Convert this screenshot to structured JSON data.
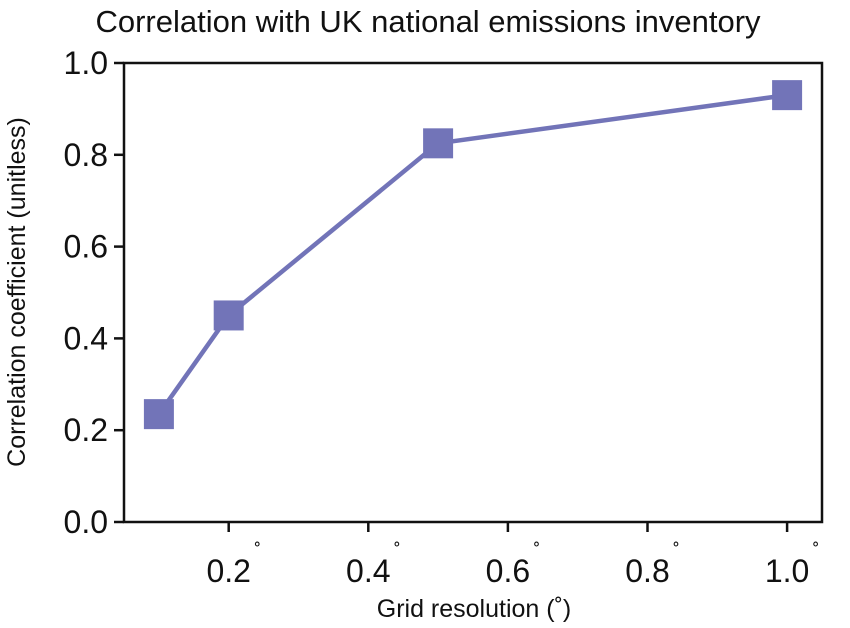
{
  "chart_data": {
    "type": "line",
    "title": "Correlation with UK national emissions inventory",
    "xlabel": "Grid resolution (˚)",
    "ylabel": "Correlation coefficient (unitless)",
    "x_tick_values": [
      0.2,
      0.4,
      0.6,
      0.8,
      1.0
    ],
    "x_tick_labels": [
      "0.2",
      "0.4",
      "0.6",
      "0.8",
      "1.0"
    ],
    "x_tick_suffix": "˚",
    "y_tick_values": [
      0.0,
      0.2,
      0.4,
      0.6,
      0.8,
      1.0
    ],
    "y_tick_labels": [
      "0.0",
      "0.2",
      "0.4",
      "0.6",
      "0.8",
      "1.0"
    ],
    "xlim": [
      0.05,
      1.05
    ],
    "ylim": [
      0.0,
      1.0
    ],
    "grid": false,
    "legend": false,
    "marker": "square",
    "series": [
      {
        "color": "#7274b8",
        "x": [
          0.1,
          0.2,
          0.5,
          1.0
        ],
        "y": [
          0.235,
          0.45,
          0.825,
          0.93
        ]
      }
    ]
  }
}
